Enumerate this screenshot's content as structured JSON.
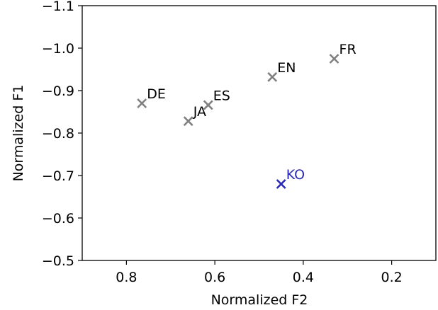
{
  "chart_data": {
    "type": "scatter",
    "title": "",
    "xlabel": "Normalized F2",
    "ylabel": "Normalized F1",
    "xlim": [
      0.9,
      0.1
    ],
    "ylim": [
      -0.5,
      -1.1
    ],
    "x_inverted": true,
    "y_inverted": true,
    "xticks": [
      0.8,
      0.6,
      0.4,
      0.2
    ],
    "xtick_labels": [
      "0.8",
      "0.6",
      "0.4",
      "0.2"
    ],
    "yticks": [
      -1.1,
      -1.0,
      -0.9,
      -0.8,
      -0.7,
      -0.6,
      -0.5
    ],
    "ytick_labels": [
      "−1.1",
      "−1.0",
      "−0.9",
      "−0.8",
      "−0.7",
      "−0.6",
      "−0.5"
    ],
    "grid": false,
    "marker": "x",
    "points": [
      {
        "label": "FR",
        "x": 0.33,
        "y": -0.975,
        "color": "#808080"
      },
      {
        "label": "EN",
        "x": 0.47,
        "y": -0.932,
        "color": "#808080"
      },
      {
        "label": "ES",
        "x": 0.615,
        "y": -0.866,
        "color": "#808080"
      },
      {
        "label": "DE",
        "x": 0.765,
        "y": -0.87,
        "color": "#808080"
      },
      {
        "label": "JA",
        "x": 0.66,
        "y": -0.828,
        "color": "#808080"
      },
      {
        "label": "KO",
        "x": 0.45,
        "y": -0.68,
        "color": "#2a2ab8"
      }
    ]
  }
}
